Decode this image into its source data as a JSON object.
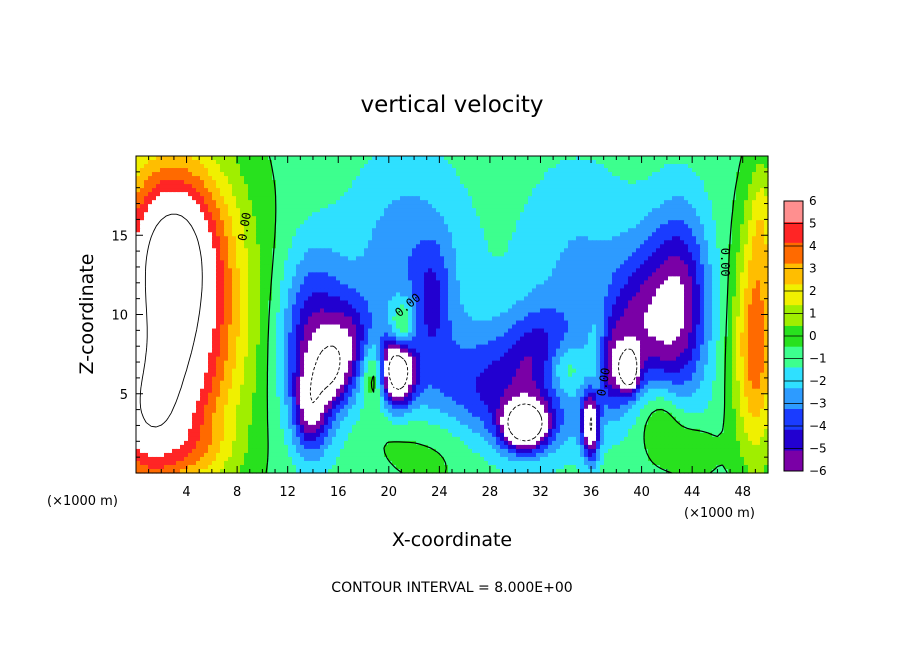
{
  "chart_data": {
    "type": "heatmap",
    "title": "vertical velocity",
    "xlabel": "X-coordinate",
    "ylabel": "Z-coordinate",
    "x_unit": "(×1000 m)",
    "z_unit": "(×1000 m)",
    "xlim": [
      0,
      50
    ],
    "ylim": [
      0,
      20
    ],
    "x_ticks": [
      4,
      8,
      12,
      16,
      20,
      24,
      28,
      32,
      36,
      40,
      44,
      48
    ],
    "x_tick_labels": [
      "4",
      "8",
      "12",
      "16",
      "20",
      "24",
      "28",
      "32",
      "36",
      "40",
      "44",
      "48"
    ],
    "y_ticks": [
      5,
      10,
      15
    ],
    "y_tick_labels": [
      "5",
      "10",
      "15"
    ],
    "colorbar": {
      "min": -6,
      "max": 6,
      "ticks": [
        -6,
        -5,
        -4,
        -3,
        -2,
        -1,
        0,
        1,
        2,
        3,
        4,
        5,
        6
      ],
      "tick_labels": [
        "−6",
        "−5",
        "−4",
        "−3",
        "−2",
        "−1",
        "0",
        "1",
        "2",
        "3",
        "4",
        "5",
        "6"
      ],
      "colors": [
        "#7a00a6",
        "#2200d0",
        "#1a3cff",
        "#2d9bff",
        "#2fe0ff",
        "#3dff8e",
        "#28e11e",
        "#a0ee00",
        "#f0f000",
        "#ffbe00",
        "#ff6a00",
        "#ff2525",
        "#ff8f8f"
      ]
    },
    "contour_labels": [
      "0.00",
      "0.00",
      "0.00",
      "0.00"
    ],
    "contour_interval_text": "CONTOUR INTERVAL = 8.000E+00",
    "field": {
      "background": -0.3,
      "features": [
        {
          "x": 3,
          "z": 10,
          "sx": 3.6,
          "sz": 6.5,
          "amp": 9
        },
        {
          "x": 3,
          "z": 15,
          "sx": 2.5,
          "sz": 3,
          "amp": 3
        },
        {
          "x": 0.5,
          "z": 3,
          "sx": 2.5,
          "sz": 3,
          "amp": 4
        },
        {
          "x": 14,
          "z": 8,
          "sx": 1.8,
          "sz": 4,
          "amp": -5
        },
        {
          "x": 13.8,
          "z": 4,
          "sx": 0.9,
          "sz": 1.8,
          "amp": -4
        },
        {
          "x": 15.5,
          "z": 6.5,
          "sx": 1.0,
          "sz": 1.5,
          "amp": -4
        },
        {
          "x": 17,
          "z": 8.5,
          "sx": 1.2,
          "sz": 2,
          "amp": -3
        },
        {
          "x": 18.8,
          "z": 6.3,
          "sx": 0.6,
          "sz": 1.4,
          "amp": 3
        },
        {
          "x": 20.7,
          "z": 6.5,
          "sx": 0.9,
          "sz": 1.5,
          "amp": -9
        },
        {
          "x": 21,
          "z": 9,
          "sx": 0.7,
          "sz": 1.3,
          "amp": 4
        },
        {
          "x": 21.5,
          "z": 13,
          "sx": 3.5,
          "sz": 5,
          "amp": -2.5
        },
        {
          "x": 23.5,
          "z": 11,
          "sx": 1.0,
          "sz": 2.5,
          "amp": -2
        },
        {
          "x": 20,
          "z": 3,
          "sx": 1.5,
          "sz": 1.5,
          "amp": 0.5
        },
        {
          "x": 24,
          "z": 2,
          "sx": 3,
          "sz": 2,
          "amp": 1.5
        },
        {
          "x": 29,
          "z": 5,
          "sx": 5,
          "sz": 2.8,
          "amp": -4
        },
        {
          "x": 30.8,
          "z": 3,
          "sx": 1.2,
          "sz": 1,
          "amp": -9
        },
        {
          "x": 34,
          "z": 6.5,
          "sx": 1.2,
          "sz": 1.3,
          "amp": 3
        },
        {
          "x": 36.5,
          "z": 6.5,
          "sx": 0.6,
          "sz": 2.5,
          "amp": 2
        },
        {
          "x": 36,
          "z": 3,
          "sx": 0.5,
          "sz": 1.5,
          "amp": -7
        },
        {
          "x": 37.5,
          "z": 6.5,
          "sx": 0.8,
          "sz": 1.8,
          "amp": -3
        },
        {
          "x": 39,
          "z": 6.5,
          "sx": 0.5,
          "sz": 0.9,
          "amp": -8
        },
        {
          "x": 39,
          "z": 9,
          "sx": 1.5,
          "sz": 3,
          "amp": -3
        },
        {
          "x": 41.8,
          "z": 10,
          "sx": 1.8,
          "sz": 4,
          "amp": -4
        },
        {
          "x": 43.5,
          "z": 11,
          "sx": 1.6,
          "sz": 4.5,
          "amp": -3
        },
        {
          "x": 35,
          "z": 13,
          "sx": 3.5,
          "sz": 5,
          "amp": -1.8
        },
        {
          "x": 41.5,
          "z": 3.5,
          "sx": 1.3,
          "sz": 1.8,
          "amp": 2.5
        },
        {
          "x": 44,
          "z": 1.5,
          "sx": 1.3,
          "sz": 1.2,
          "amp": 1.5
        },
        {
          "x": 49,
          "z": 8,
          "sx": 1.2,
          "sz": 5,
          "amp": 5
        },
        {
          "x": 49.5,
          "z": 16,
          "sx": 0.8,
          "sz": 3,
          "amp": 2
        },
        {
          "x": 5.5,
          "z": 1.5,
          "sx": 2,
          "sz": 1.2,
          "amp": 1
        },
        {
          "x": 32,
          "z": 8,
          "sx": 2,
          "sz": 2,
          "amp": -2
        }
      ]
    }
  }
}
